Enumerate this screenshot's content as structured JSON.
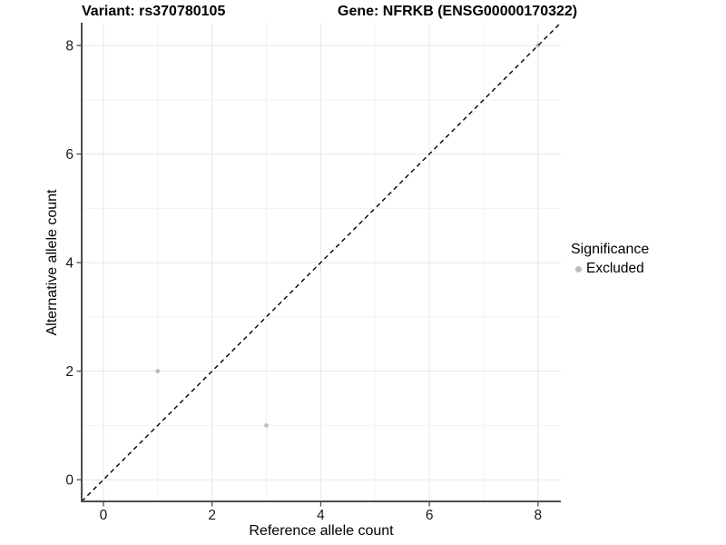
{
  "title": {
    "variant": "Variant: rs370780105",
    "gene": "Gene: NFRKB (ENSG00000170322)"
  },
  "chart_data": {
    "type": "scatter",
    "title_left": "Variant: rs370780105",
    "title_right": "Gene: NFRKB (ENSG00000170322)",
    "xlabel": "Reference allele count",
    "ylabel": "Alternative allele count",
    "xlim": [
      -0.4,
      8.42
    ],
    "ylim": [
      -0.4,
      8.42
    ],
    "major_ticks": [
      0,
      2,
      4,
      6,
      8
    ],
    "minor_ticks": [
      1,
      3,
      5,
      7
    ],
    "tick_labels": [
      "0",
      "2",
      "4",
      "6",
      "8"
    ],
    "grid": true,
    "series": [
      {
        "name": "Excluded",
        "color": "#bdbdbd",
        "points": [
          [
            1,
            2
          ],
          [
            3,
            1
          ],
          [
            8,
            8
          ]
        ]
      }
    ],
    "identity_line": {
      "type": "abline",
      "slope": 1,
      "intercept": 0,
      "style": "dashed",
      "color": "#000000"
    },
    "legend": {
      "title": "Significance",
      "position": "right",
      "entries": [
        {
          "label": "Excluded",
          "color": "#bdbdbd"
        }
      ]
    }
  },
  "colors": {
    "background": "#ffffff",
    "point": "#bdbdbd",
    "grid_major": "#e6e6e6",
    "grid_minor": "#f2f2f2",
    "axis_line": "#4d4d4d",
    "tick_text": "#1a1a1a",
    "identity_line": "#000000"
  }
}
